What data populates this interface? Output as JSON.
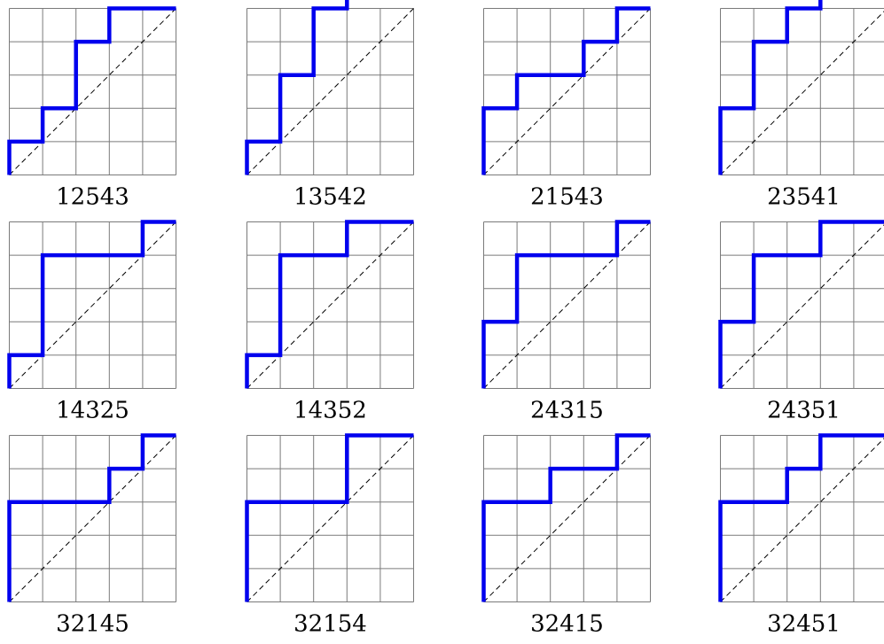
{
  "grid_size": 5,
  "colors": {
    "path": "#0000ee",
    "grid": "#7a7a7a",
    "diagonal": "#000000"
  },
  "panels": [
    {
      "label": "12543",
      "steps": [
        1,
        1,
        1,
        1,
        2,
        1,
        1,
        2
      ]
    },
    {
      "label": "13542",
      "steps": [
        1,
        1,
        2,
        1,
        2,
        1,
        1,
        1
      ]
    },
    {
      "label": "21543",
      "steps": [
        2,
        1,
        1,
        2,
        1,
        1,
        1,
        1
      ]
    },
    {
      "label": "23541",
      "steps": [
        2,
        1,
        2,
        1,
        1,
        1,
        1,
        1
      ]
    },
    {
      "label": "14325",
      "steps": [
        1,
        1,
        3,
        3,
        1,
        1
      ]
    },
    {
      "label": "14352",
      "steps": [
        1,
        1,
        3,
        2,
        1,
        2
      ]
    },
    {
      "label": "24315",
      "steps": [
        2,
        1,
        2,
        3,
        1,
        1
      ]
    },
    {
      "label": "24351",
      "steps": [
        2,
        1,
        2,
        2,
        1,
        2
      ]
    },
    {
      "label": "32145",
      "steps": [
        3,
        3,
        1,
        1,
        1,
        1
      ]
    },
    {
      "label": "32154",
      "steps": [
        3,
        3,
        2,
        2
      ]
    },
    {
      "label": "32415",
      "steps": [
        3,
        2,
        1,
        2,
        1,
        1
      ]
    },
    {
      "label": "32451",
      "steps": [
        3,
        2,
        1,
        1,
        1,
        2
      ]
    }
  ]
}
